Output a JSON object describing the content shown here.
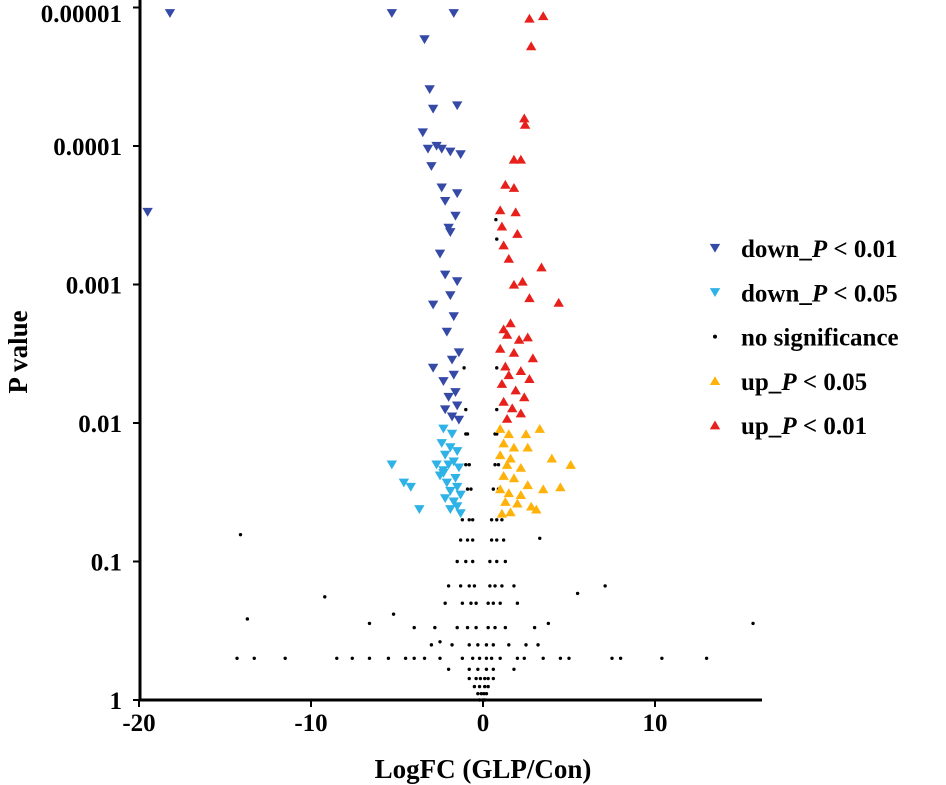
{
  "chart_data": {
    "type": "scatter",
    "title": "",
    "xlabel": "LogFC (GLP/Con)",
    "ylabel": "P value",
    "xlim": [
      -20,
      16
    ],
    "ylim": [
      1,
      1e-05
    ],
    "yscale": "log-reversed",
    "x_ticks": [
      "-20",
      "-10",
      "0",
      "10"
    ],
    "x_tick_values": [
      -20,
      -10,
      0,
      10
    ],
    "y_ticks": [
      "1",
      "0.1",
      "0.01",
      "0.001",
      "0.0001",
      "0.00001"
    ],
    "y_tick_values": [
      1,
      0.1,
      0.01,
      0.001,
      0.0001,
      1e-05
    ],
    "grid": false,
    "legend_position": "right",
    "series": [
      {
        "name": "down_P < 0.01",
        "prefix": "down_",
        "italic": "P",
        "suffix": " < 0.01",
        "marker": "triangle-down",
        "color": "#3549a6",
        "points": [
          [
            -18.2,
            1.1e-05
          ],
          [
            -5.3,
            1.1e-05
          ],
          [
            -1.7,
            1.1e-05
          ],
          [
            -3.4,
            1.7e-05
          ],
          [
            -19.5,
            0.0003
          ],
          [
            -3.1,
            3.9e-05
          ],
          [
            -2.9,
            5.4e-05
          ],
          [
            -1.5,
            5.1e-05
          ],
          [
            -3.5,
            8e-05
          ],
          [
            -3.2,
            0.000105
          ],
          [
            -2.7,
            0.0001
          ],
          [
            -2.4,
            0.000105
          ],
          [
            -1.9,
            0.00011
          ],
          [
            -1.3,
            0.000115
          ],
          [
            -3.0,
            0.00014
          ],
          [
            -2.4,
            0.0002
          ],
          [
            -1.5,
            0.00022
          ],
          [
            -2.2,
            0.00025
          ],
          [
            -1.6,
            0.00032
          ],
          [
            -2.0,
            0.00039
          ],
          [
            -1.9,
            0.00042
          ],
          [
            -2.5,
            0.0006
          ],
          [
            -2.2,
            0.00085
          ],
          [
            -1.5,
            0.00095
          ],
          [
            -2.9,
            0.0014
          ],
          [
            -1.9,
            0.0012
          ],
          [
            -1.7,
            0.0017
          ],
          [
            -2.1,
            0.0022
          ],
          [
            -1.4,
            0.0031
          ],
          [
            -1.8,
            0.0035
          ],
          [
            -2.9,
            0.004
          ],
          [
            -1.7,
            0.0045
          ],
          [
            -2.3,
            0.005
          ],
          [
            -1.6,
            0.006
          ],
          [
            -2.0,
            0.0065
          ],
          [
            -1.5,
            0.0075
          ],
          [
            -2.2,
            0.008
          ],
          [
            -1.8,
            0.009
          ],
          [
            -1.4,
            0.0095
          ]
        ]
      },
      {
        "name": "down_P < 0.05",
        "prefix": "down_",
        "italic": "P",
        "suffix": " < 0.05",
        "marker": "triangle-down",
        "color": "#2fb3e6",
        "points": [
          [
            -5.3,
            0.02
          ],
          [
            -4.6,
            0.027
          ],
          [
            -4.2,
            0.029
          ],
          [
            -3.7,
            0.042
          ],
          [
            -2.5,
            0.024
          ],
          [
            -2.7,
            0.02
          ],
          [
            -2.3,
            0.022
          ],
          [
            -2.3,
            0.011
          ],
          [
            -1.8,
            0.012
          ],
          [
            -2.4,
            0.014
          ],
          [
            -1.9,
            0.015
          ],
          [
            -1.5,
            0.016
          ],
          [
            -2.2,
            0.017
          ],
          [
            -1.7,
            0.019
          ],
          [
            -2.0,
            0.02
          ],
          [
            -1.4,
            0.021
          ],
          [
            -2.3,
            0.023
          ],
          [
            -1.6,
            0.025
          ],
          [
            -2.1,
            0.027
          ],
          [
            -1.5,
            0.029
          ],
          [
            -1.9,
            0.031
          ],
          [
            -1.3,
            0.033
          ],
          [
            -2.2,
            0.035
          ],
          [
            -1.7,
            0.037
          ],
          [
            -1.5,
            0.04
          ],
          [
            -1.9,
            0.042
          ],
          [
            -1.3,
            0.045
          ]
        ]
      },
      {
        "name": "no significance",
        "prefix": "no significance",
        "italic": "",
        "suffix": "",
        "marker": "dot",
        "color": "#000000",
        "points": [
          [
            -14.1,
            0.064
          ],
          [
            -13.7,
            0.26
          ],
          [
            -9.2,
            0.18
          ],
          [
            -14.3,
            0.5
          ],
          [
            -13.3,
            0.5
          ],
          [
            -11.5,
            0.5
          ],
          [
            -8.5,
            0.5
          ],
          [
            -7.6,
            0.5
          ],
          [
            -6.6,
            0.5
          ],
          [
            -5.5,
            0.5
          ],
          [
            -4.5,
            0.5
          ],
          [
            -3.4,
            0.5
          ],
          [
            2.0,
            0.5
          ],
          [
            3.5,
            0.5
          ],
          [
            5.0,
            0.5
          ],
          [
            7.5,
            0.5
          ],
          [
            8.0,
            0.5
          ],
          [
            10.4,
            0.5
          ],
          [
            13.0,
            0.5
          ],
          [
            15.7,
            0.28
          ],
          [
            7.1,
            0.15
          ],
          [
            5.5,
            0.17
          ],
          [
            3.3,
            0.068
          ],
          [
            -6.6,
            0.28
          ],
          [
            -5.2,
            0.24
          ],
          [
            -4.0,
            0.3
          ],
          [
            3.8,
            0.28
          ],
          [
            -2.5,
            0.38
          ],
          [
            2.5,
            0.4
          ],
          [
            0.75,
            0.00034
          ],
          [
            0.8,
            0.00047
          ],
          [
            -1.1,
            0.004
          ],
          [
            0.8,
            0.004
          ],
          [
            -1.0,
            0.008
          ],
          [
            0.8,
            0.008
          ],
          [
            -1.0,
            0.012
          ],
          [
            -0.9,
            0.012
          ],
          [
            0.7,
            0.012
          ],
          [
            0.8,
            0.012
          ],
          [
            -1.0,
            0.02
          ],
          [
            -0.8,
            0.02
          ],
          [
            0.7,
            0.02
          ],
          [
            0.9,
            0.02
          ],
          [
            -0.9,
            0.03
          ],
          [
            -0.7,
            0.03
          ],
          [
            0.6,
            0.03
          ],
          [
            0.9,
            0.03
          ],
          [
            -1.2,
            0.05
          ],
          [
            -0.8,
            0.05
          ],
          [
            -0.6,
            0.05
          ],
          [
            0.5,
            0.05
          ],
          [
            0.8,
            0.05
          ],
          [
            1.1,
            0.05
          ],
          [
            -1.3,
            0.07
          ],
          [
            -0.9,
            0.07
          ],
          [
            -0.6,
            0.07
          ],
          [
            0.5,
            0.07
          ],
          [
            0.8,
            0.07
          ],
          [
            1.2,
            0.07
          ],
          [
            -1.5,
            0.1
          ],
          [
            -1.0,
            0.1
          ],
          [
            -0.6,
            0.1
          ],
          [
            0.4,
            0.1
          ],
          [
            0.8,
            0.1
          ],
          [
            1.3,
            0.1
          ],
          [
            -2.0,
            0.15
          ],
          [
            -1.3,
            0.15
          ],
          [
            -0.8,
            0.15
          ],
          [
            -0.5,
            0.15
          ],
          [
            0.4,
            0.15
          ],
          [
            0.7,
            0.15
          ],
          [
            1.1,
            0.15
          ],
          [
            1.8,
            0.15
          ],
          [
            -2.2,
            0.2
          ],
          [
            -1.2,
            0.2
          ],
          [
            -0.7,
            0.2
          ],
          [
            -0.4,
            0.2
          ],
          [
            0.3,
            0.2
          ],
          [
            0.6,
            0.2
          ],
          [
            1.0,
            0.2
          ],
          [
            2.0,
            0.2
          ],
          [
            -2.8,
            0.3
          ],
          [
            -1.5,
            0.3
          ],
          [
            -0.9,
            0.3
          ],
          [
            -0.4,
            0.3
          ],
          [
            0.3,
            0.3
          ],
          [
            0.7,
            0.3
          ],
          [
            1.3,
            0.3
          ],
          [
            3.0,
            0.3
          ],
          [
            -3.0,
            0.4
          ],
          [
            -1.8,
            0.4
          ],
          [
            -0.8,
            0.4
          ],
          [
            -0.3,
            0.4
          ],
          [
            0.2,
            0.4
          ],
          [
            0.6,
            0.4
          ],
          [
            1.5,
            0.4
          ],
          [
            3.2,
            0.4
          ],
          [
            -4.0,
            0.5
          ],
          [
            -2.5,
            0.5
          ],
          [
            -1.2,
            0.5
          ],
          [
            -0.6,
            0.5
          ],
          [
            -0.2,
            0.5
          ],
          [
            0.2,
            0.5
          ],
          [
            0.5,
            0.5
          ],
          [
            1.0,
            0.5
          ],
          [
            2.4,
            0.5
          ],
          [
            4.5,
            0.5
          ],
          [
            -2.0,
            0.6
          ],
          [
            -0.8,
            0.6
          ],
          [
            -0.3,
            0.6
          ],
          [
            0.2,
            0.6
          ],
          [
            0.6,
            0.6
          ],
          [
            1.8,
            0.6
          ],
          [
            -0.8,
            0.7
          ],
          [
            -0.4,
            0.7
          ],
          [
            -0.15,
            0.7
          ],
          [
            0.1,
            0.7
          ],
          [
            0.3,
            0.7
          ],
          [
            0.6,
            0.7
          ],
          [
            -0.5,
            0.8
          ],
          [
            -0.2,
            0.8
          ],
          [
            0.1,
            0.8
          ],
          [
            0.3,
            0.8
          ],
          [
            -0.3,
            0.9
          ],
          [
            -0.1,
            0.9
          ],
          [
            0.05,
            0.9
          ],
          [
            0.2,
            0.9
          ],
          [
            -0.2,
            1.0
          ],
          [
            0.0,
            1.0
          ],
          [
            0.1,
            1.0
          ]
        ]
      },
      {
        "name": "up_P < 0.05",
        "prefix": "up_",
        "italic": "P",
        "suffix": " < 0.05",
        "marker": "triangle-up",
        "color": "#ffb20a",
        "points": [
          [
            1.0,
            0.011
          ],
          [
            1.5,
            0.012
          ],
          [
            2.5,
            0.012
          ],
          [
            3.3,
            0.011
          ],
          [
            1.2,
            0.014
          ],
          [
            1.8,
            0.015
          ],
          [
            1.0,
            0.017
          ],
          [
            1.6,
            0.018
          ],
          [
            2.6,
            0.015
          ],
          [
            1.4,
            0.02
          ],
          [
            2.2,
            0.021
          ],
          [
            4.0,
            0.018
          ],
          [
            5.1,
            0.02
          ],
          [
            1.2,
            0.024
          ],
          [
            1.8,
            0.025
          ],
          [
            2.6,
            0.028
          ],
          [
            1.0,
            0.03
          ],
          [
            1.5,
            0.032
          ],
          [
            2.2,
            0.033
          ],
          [
            3.5,
            0.03
          ],
          [
            4.5,
            0.029
          ],
          [
            1.3,
            0.037
          ],
          [
            2.0,
            0.038
          ],
          [
            2.8,
            0.04
          ],
          [
            3.1,
            0.042
          ],
          [
            1.6,
            0.044
          ],
          [
            1.1,
            0.045
          ]
        ]
      },
      {
        "name": "up_P < 0.01",
        "prefix": "up_",
        "italic": "P",
        "suffix": " < 0.01",
        "marker": "triangle-up",
        "color": "#e8201c",
        "points": [
          [
            2.7,
            1.2e-05
          ],
          [
            3.5,
            1.15e-05
          ],
          [
            2.8,
            1.9e-05
          ],
          [
            2.4,
            6.3e-05
          ],
          [
            2.45,
            7e-05
          ],
          [
            1.8,
            0.000125
          ],
          [
            2.2,
            0.000125
          ],
          [
            1.3,
            0.00019
          ],
          [
            1.8,
            0.0002
          ],
          [
            1.0,
            0.00029
          ],
          [
            1.9,
            0.0003
          ],
          [
            1.1,
            0.00038
          ],
          [
            2.0,
            0.00043
          ],
          [
            1.2,
            0.00052
          ],
          [
            1.5,
            0.00065
          ],
          [
            3.4,
            0.00075
          ],
          [
            1.8,
            0.001
          ],
          [
            2.3,
            0.00095
          ],
          [
            4.4,
            0.00135
          ],
          [
            2.7,
            0.00125
          ],
          [
            1.6,
            0.0019
          ],
          [
            1.2,
            0.0021
          ],
          [
            1.4,
            0.0023
          ],
          [
            2.1,
            0.0025
          ],
          [
            1.0,
            0.0029
          ],
          [
            2.6,
            0.0024
          ],
          [
            1.8,
            0.0031
          ],
          [
            2.9,
            0.0034
          ],
          [
            1.3,
            0.0039
          ],
          [
            2.2,
            0.0042
          ],
          [
            1.5,
            0.0045
          ],
          [
            2.7,
            0.0048
          ],
          [
            1.1,
            0.0052
          ],
          [
            1.9,
            0.0058
          ],
          [
            2.4,
            0.0065
          ],
          [
            1.2,
            0.007
          ],
          [
            1.7,
            0.0078
          ],
          [
            2.2,
            0.0085
          ],
          [
            1.4,
            0.0093
          ]
        ]
      }
    ]
  }
}
